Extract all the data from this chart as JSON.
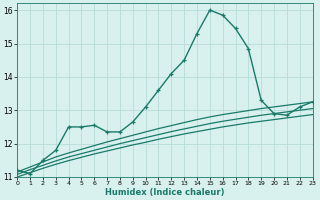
{
  "title": "",
  "xlabel": "Humidex (Indice chaleur)",
  "ylabel": "",
  "x": [
    0,
    1,
    2,
    3,
    4,
    5,
    6,
    7,
    8,
    9,
    10,
    11,
    12,
    13,
    14,
    15,
    16,
    17,
    18,
    19,
    20,
    21,
    22,
    23
  ],
  "y_main": [
    11.2,
    11.1,
    11.5,
    11.8,
    12.5,
    12.5,
    12.55,
    12.35,
    12.35,
    12.65,
    13.1,
    13.6,
    14.1,
    14.5,
    15.3,
    16.0,
    15.85,
    15.45,
    14.85,
    13.3,
    12.9,
    12.85,
    13.1,
    13.25
  ],
  "y_line1": [
    11.15,
    11.3,
    11.45,
    11.6,
    11.72,
    11.83,
    11.94,
    12.05,
    12.15,
    12.25,
    12.35,
    12.45,
    12.54,
    12.63,
    12.72,
    12.8,
    12.87,
    12.93,
    12.99,
    13.05,
    13.1,
    13.15,
    13.2,
    13.25
  ],
  "y_line2": [
    11.08,
    11.22,
    11.35,
    11.48,
    11.6,
    11.7,
    11.8,
    11.9,
    12.0,
    12.09,
    12.18,
    12.27,
    12.36,
    12.44,
    12.52,
    12.6,
    12.67,
    12.73,
    12.79,
    12.85,
    12.9,
    12.95,
    13.0,
    13.05
  ],
  "y_line3": [
    11.0,
    11.13,
    11.26,
    11.38,
    11.49,
    11.59,
    11.69,
    11.78,
    11.87,
    11.96,
    12.04,
    12.13,
    12.21,
    12.29,
    12.36,
    12.43,
    12.5,
    12.56,
    12.62,
    12.67,
    12.72,
    12.77,
    12.82,
    12.87
  ],
  "line_color": "#1a7a6a",
  "bg_color": "#d8f0ee",
  "grid_color": "#b8dcd8",
  "ylim": [
    11.0,
    16.2
  ],
  "yticks": [
    11,
    12,
    13,
    14,
    15,
    16
  ],
  "xlim": [
    0,
    23
  ],
  "figsize": [
    3.2,
    2.0
  ],
  "dpi": 100
}
